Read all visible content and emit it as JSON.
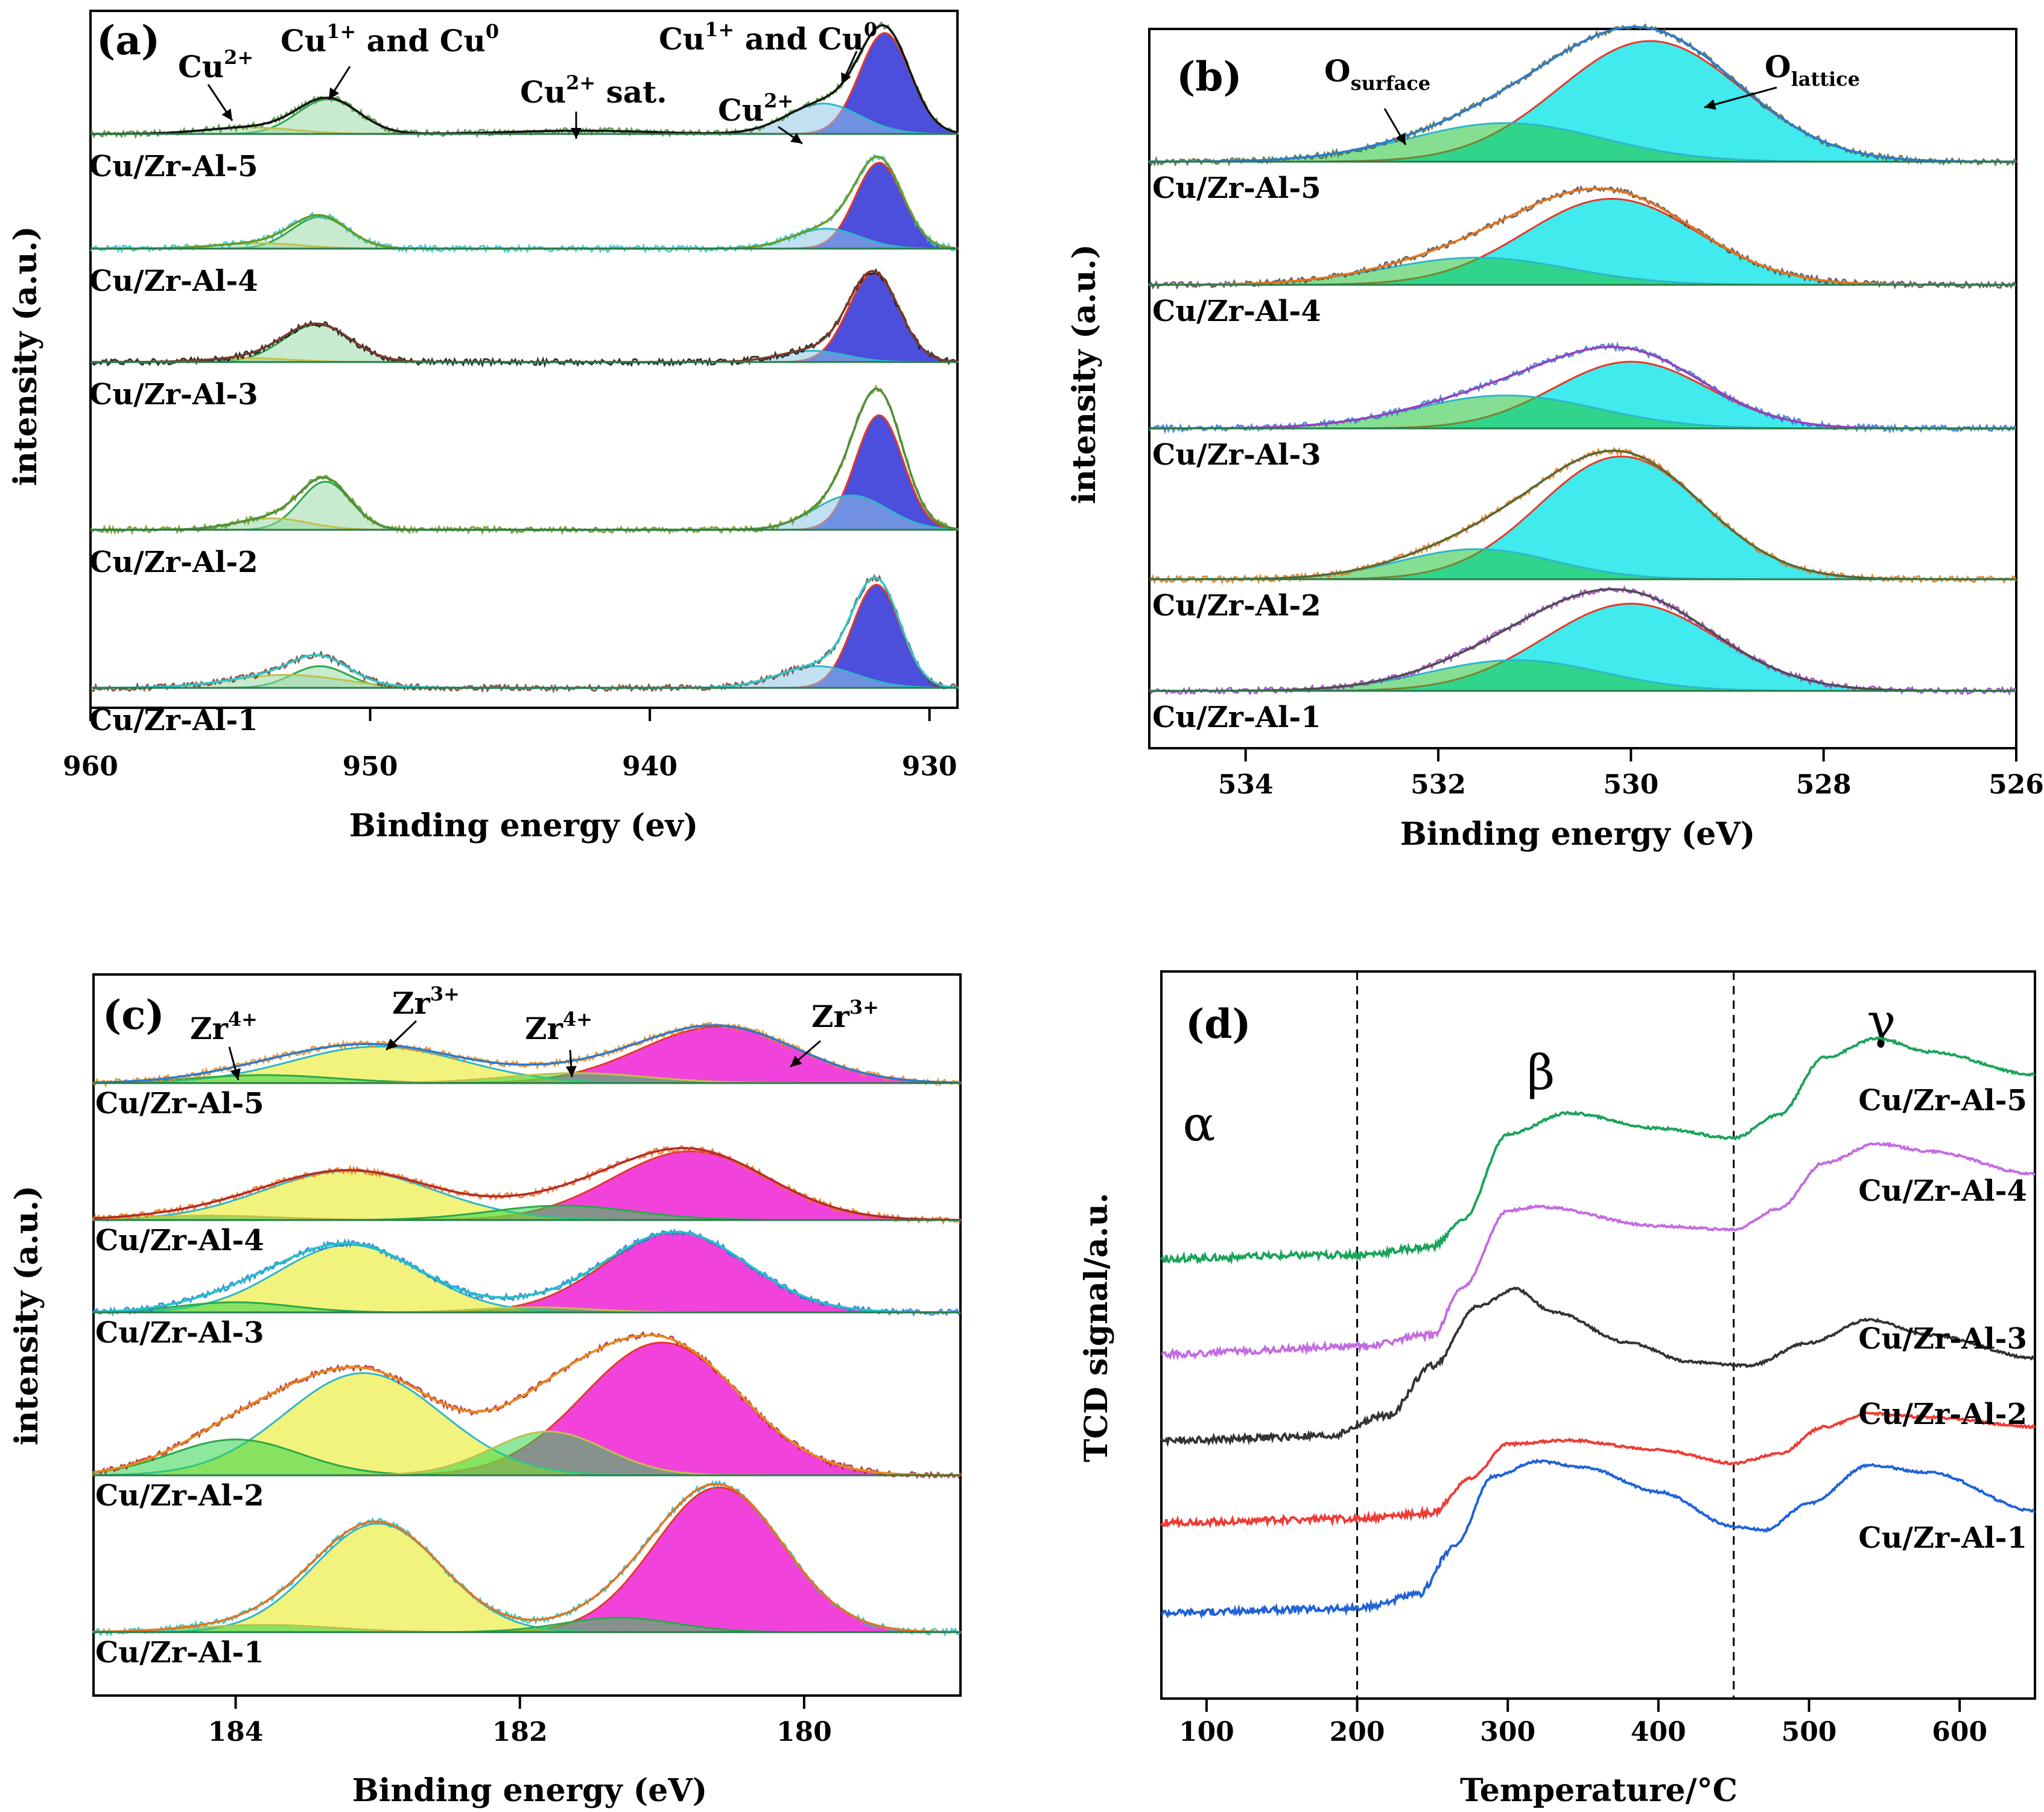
{
  "colors": {
    "cu_blue": "#2d2fd6",
    "o_cyan": "#1fe6ea",
    "o_green": "#22c23a",
    "zr_magenta": "#ee22d6",
    "zr_yellow": "#e8ea10",
    "tcd_green": "#1aa35a",
    "tcd_violet": "#c46ce0",
    "tcd_dark": "#333333",
    "tcd_red": "#ee3b35",
    "tcd_blue": "#1f62d8"
  },
  "chart_data": [
    {
      "id": "a",
      "type": "line",
      "panel_label": "(a)",
      "xlabel": "Binding energy (ev)",
      "ylabel": "intensity (a.u.)",
      "xlim": [
        960,
        929
      ],
      "xticks": [
        "960",
        "950",
        "940",
        "930"
      ],
      "xtick_values": [
        960,
        950,
        940,
        930
      ],
      "series_labels": [
        "Cu/Zr-Al-5",
        "Cu/Zr-Al-4",
        "Cu/Zr-Al-3",
        "Cu/Zr-Al-2",
        "Cu/Zr-Al-1"
      ],
      "annotations": [
        {
          "base": "Cu",
          "sup": "2+",
          "sub": "",
          "tail": "",
          "target_be": 954.5
        },
        {
          "base": "Cu",
          "sup": "1+",
          "sub": "",
          "tail": " and Cu",
          "tail_sup": "0",
          "target_be": 951.5
        },
        {
          "base": "Cu",
          "sup": "2+",
          "sub": "",
          "tail": " sat.",
          "target_be": 942.5
        },
        {
          "base": "Cu",
          "sup": "1+",
          "sub": "",
          "tail": " and Cu",
          "tail_sup": "0",
          "target_be": 932.3
        },
        {
          "base": "Cu",
          "sup": "2+",
          "sub": "",
          "tail": "",
          "target_be": 934.5
        }
      ],
      "peaks": [
        {
          "series": "Cu/Zr-Al-5",
          "components": [
            {
              "center": 931.6,
              "height": 0.93,
              "width": 0.9
            },
            {
              "center": 933.8,
              "height": 0.28,
              "width": 1.3
            },
            {
              "center": 951.5,
              "height": 0.32,
              "width": 1.1
            },
            {
              "center": 954.3,
              "height": 0.06,
              "width": 1.6
            },
            {
              "center": 942.5,
              "height": 0.03,
              "width": 2.5
            }
          ]
        },
        {
          "series": "Cu/Zr-Al-4",
          "components": [
            {
              "center": 931.8,
              "height": 0.95,
              "width": 0.85
            },
            {
              "center": 933.7,
              "height": 0.22,
              "width": 1.2
            },
            {
              "center": 951.8,
              "height": 0.35,
              "width": 1.0
            },
            {
              "center": 954.0,
              "height": 0.06,
              "width": 1.5
            }
          ]
        },
        {
          "series": "Cu/Zr-Al-3",
          "components": [
            {
              "center": 932.0,
              "height": 0.95,
              "width": 0.9
            },
            {
              "center": 934.2,
              "height": 0.12,
              "width": 1.2
            },
            {
              "center": 951.9,
              "height": 0.4,
              "width": 1.2
            },
            {
              "center": 954.3,
              "height": 0.04,
              "width": 1.5
            }
          ]
        },
        {
          "series": "Cu/Zr-Al-2",
          "components": [
            {
              "center": 931.8,
              "height": 1.0,
              "width": 0.85
            },
            {
              "center": 932.8,
              "height": 0.3,
              "width": 1.3
            },
            {
              "center": 951.6,
              "height": 0.42,
              "width": 0.9
            },
            {
              "center": 953.5,
              "height": 0.1,
              "width": 1.3
            }
          ]
        },
        {
          "series": "Cu/Zr-Al-1",
          "components": [
            {
              "center": 931.9,
              "height": 0.95,
              "width": 0.85
            },
            {
              "center": 934.0,
              "height": 0.2,
              "width": 1.4
            },
            {
              "center": 951.8,
              "height": 0.2,
              "width": 1.0
            },
            {
              "center": 953.0,
              "height": 0.12,
              "width": 2.0
            }
          ]
        }
      ]
    },
    {
      "id": "b",
      "type": "line",
      "panel_label": "(b)",
      "xlabel": "Binding energy (eV)",
      "ylabel": "intensity (a.u.)",
      "xlim": [
        535,
        526
      ],
      "xticks": [
        "534",
        "532",
        "530",
        "528",
        "526"
      ],
      "xtick_values": [
        534,
        532,
        530,
        528,
        526
      ],
      "series_labels": [
        "Cu/Zr-Al-5",
        "Cu/Zr-Al-4",
        "Cu/Zr-Al-3",
        "Cu/Zr-Al-2",
        "Cu/Zr-Al-1"
      ],
      "annotations": [
        {
          "base": "O",
          "sup": "",
          "sub": "surface",
          "tail": "",
          "target_be": 531.5
        },
        {
          "base": "O",
          "sup": "",
          "sub": "lattice",
          "tail": "",
          "target_be": 529.2
        }
      ],
      "peaks": [
        {
          "series": "Cu/Zr-Al-5",
          "components": [
            {
              "center": 529.8,
              "height": 1.0,
              "width": 0.95
            },
            {
              "center": 531.3,
              "height": 0.32,
              "width": 1.0
            }
          ]
        },
        {
          "series": "Cu/Zr-Al-4",
          "components": [
            {
              "center": 530.2,
              "height": 0.95,
              "width": 0.9
            },
            {
              "center": 531.6,
              "height": 0.3,
              "width": 0.95
            }
          ]
        },
        {
          "series": "Cu/Zr-Al-3",
          "components": [
            {
              "center": 530.0,
              "height": 0.85,
              "width": 0.8
            },
            {
              "center": 531.3,
              "height": 0.42,
              "width": 0.95
            }
          ]
        },
        {
          "series": "Cu/Zr-Al-2",
          "components": [
            {
              "center": 530.1,
              "height": 1.1,
              "width": 0.85
            },
            {
              "center": 531.6,
              "height": 0.27,
              "width": 0.8
            }
          ]
        },
        {
          "series": "Cu/Zr-Al-1",
          "components": [
            {
              "center": 530.0,
              "height": 0.85,
              "width": 0.9
            },
            {
              "center": 531.2,
              "height": 0.3,
              "width": 0.9
            }
          ]
        }
      ]
    },
    {
      "id": "c",
      "type": "line",
      "panel_label": "(c)",
      "xlabel": "Binding energy (eV)",
      "ylabel": "intensity (a.u.)",
      "xlim": [
        185.0,
        178.9
      ],
      "xticks": [
        "184",
        "182",
        "180"
      ],
      "xtick_values": [
        184,
        182,
        180
      ],
      "series_labels": [
        "Cu/Zr-Al-5",
        "Cu/Zr-Al-4",
        "Cu/Zr-Al-3",
        "Cu/Zr-Al-2",
        "Cu/Zr-Al-1"
      ],
      "annotations": [
        {
          "base": "Zr",
          "sup": "4+",
          "sub": "",
          "tail": "",
          "target_be": 183.9
        },
        {
          "base": "Zr",
          "sup": "3+",
          "sub": "",
          "tail": "",
          "target_be": 183.0
        },
        {
          "base": "Zr",
          "sup": "4+",
          "sub": "",
          "tail": "",
          "target_be": 181.7
        },
        {
          "base": "Zr",
          "sup": "3+",
          "sub": "",
          "tail": "",
          "target_be": 180.2
        }
      ],
      "peaks": [
        {
          "series": "Cu/Zr-Al-5",
          "components": [
            {
              "center": 180.6,
              "height": 0.85,
              "width": 0.55
            },
            {
              "center": 183.0,
              "height": 0.55,
              "width": 0.6
            },
            {
              "center": 183.8,
              "height": 0.12,
              "width": 0.5
            },
            {
              "center": 181.6,
              "height": 0.15,
              "width": 0.5
            }
          ]
        },
        {
          "series": "Cu/Zr-Al-4",
          "components": [
            {
              "center": 180.8,
              "height": 0.95,
              "width": 0.55
            },
            {
              "center": 183.2,
              "height": 0.68,
              "width": 0.6
            },
            {
              "center": 181.7,
              "height": 0.2,
              "width": 0.5
            },
            {
              "center": 184.2,
              "height": 0.06,
              "width": 0.5
            }
          ]
        },
        {
          "series": "Cu/Zr-Al-3",
          "components": [
            {
              "center": 180.9,
              "height": 0.95,
              "width": 0.5
            },
            {
              "center": 183.2,
              "height": 0.8,
              "width": 0.5
            },
            {
              "center": 184.0,
              "height": 0.12,
              "width": 0.4
            },
            {
              "center": 181.9,
              "height": 0.06,
              "width": 0.4
            }
          ]
        },
        {
          "series": "Cu/Zr-Al-2",
          "components": [
            {
              "center": 181.0,
              "height": 1.0,
              "width": 0.55
            },
            {
              "center": 183.1,
              "height": 0.77,
              "width": 0.55
            },
            {
              "center": 184.0,
              "height": 0.27,
              "width": 0.45
            },
            {
              "center": 181.8,
              "height": 0.33,
              "width": 0.4
            }
          ]
        },
        {
          "series": "Cu/Zr-Al-1",
          "components": [
            {
              "center": 180.6,
              "height": 1.0,
              "width": 0.45
            },
            {
              "center": 183.0,
              "height": 0.75,
              "width": 0.45
            },
            {
              "center": 181.3,
              "height": 0.1,
              "width": 0.4
            },
            {
              "center": 183.8,
              "height": 0.05,
              "width": 0.5
            }
          ]
        }
      ]
    },
    {
      "id": "d",
      "type": "line",
      "panel_label": "(d)",
      "xlabel": "Temperature/°C",
      "ylabel": "TCD signal/a.u.",
      "xlim": [
        70,
        650
      ],
      "xticks": [
        "100",
        "200",
        "300",
        "400",
        "500",
        "600"
      ],
      "xtick_values": [
        100,
        200,
        300,
        400,
        500,
        600
      ],
      "dashed_lines_at": [
        200,
        450
      ],
      "region_labels": [
        {
          "text": "α",
          "x": 95
        },
        {
          "text": "β",
          "x": 322
        },
        {
          "text": "γ",
          "x": 548
        }
      ],
      "series": [
        {
          "name": "Cu/Zr-Al-5",
          "color": "tcd_green",
          "x": [
            70,
            200,
            250,
            270,
            300,
            340,
            400,
            450,
            480,
            510,
            545,
            580,
            650
          ],
          "y": [
            19.0,
            19.2,
            19.6,
            21.0,
            25.5,
            26.6,
            25.8,
            25.3,
            26.5,
            29.5,
            30.5,
            29.8,
            28.6
          ]
        },
        {
          "name": "Cu/Zr-Al-4",
          "color": "tcd_violet",
          "x": [
            70,
            200,
            250,
            270,
            300,
            320,
            400,
            450,
            480,
            510,
            545,
            580,
            650
          ],
          "y": [
            14.0,
            14.4,
            15.0,
            17.5,
            21.5,
            21.7,
            20.7,
            20.5,
            21.6,
            24.0,
            25.0,
            24.6,
            23.4
          ]
        },
        {
          "name": "Cu/Zr-Al-3",
          "color": "tcd_dark",
          "x": [
            70,
            180,
            220,
            250,
            280,
            305,
            330,
            380,
            420,
            460,
            500,
            540,
            580,
            650
          ],
          "y": [
            9.5,
            9.7,
            10.8,
            13.4,
            16.5,
            17.4,
            16.2,
            14.6,
            13.6,
            13.4,
            14.6,
            15.8,
            15.0,
            13.8
          ]
        },
        {
          "name": "Cu/Zr-Al-2",
          "color": "tcd_red",
          "x": [
            70,
            200,
            250,
            275,
            300,
            340,
            400,
            450,
            480,
            510,
            540,
            580,
            650
          ],
          "y": [
            5.2,
            5.4,
            5.7,
            7.5,
            9.3,
            9.5,
            9.0,
            8.3,
            8.8,
            10.2,
            10.9,
            10.7,
            10.2
          ]
        },
        {
          "name": "Cu/Zr-Al-1",
          "color": "tcd_blue",
          "x": [
            70,
            200,
            240,
            265,
            290,
            320,
            350,
            400,
            450,
            470,
            500,
            540,
            580,
            650
          ],
          "y": [
            0.5,
            0.7,
            1.4,
            4.0,
            7.6,
            8.4,
            8.1,
            6.8,
            5.0,
            4.8,
            6.2,
            8.2,
            7.8,
            5.8
          ]
        }
      ]
    }
  ]
}
